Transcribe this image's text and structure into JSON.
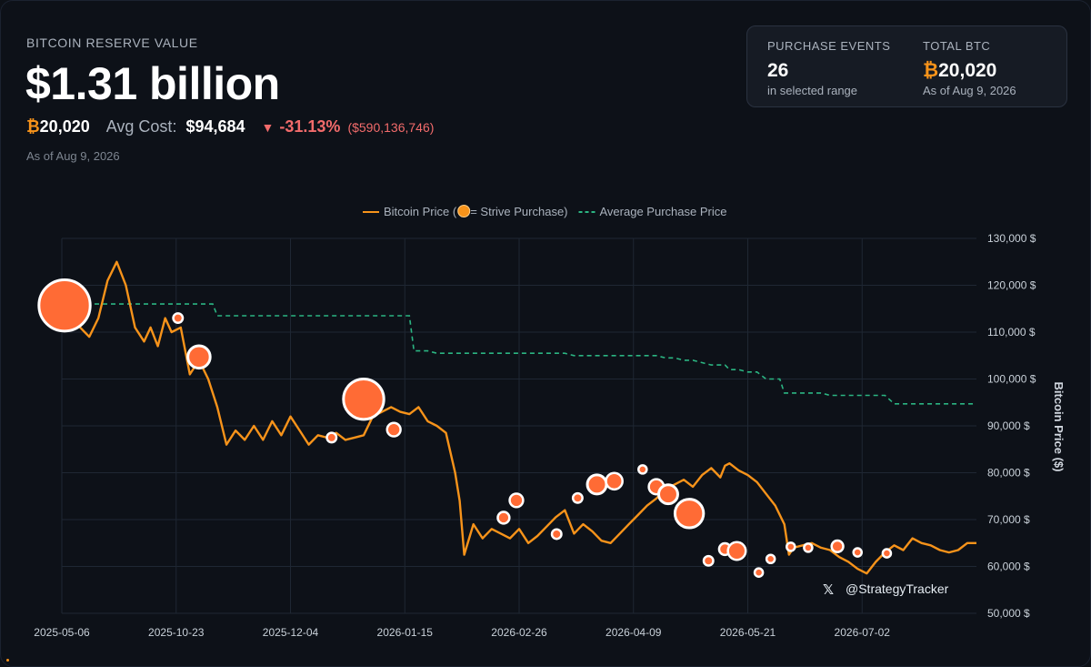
{
  "header": {
    "label": "BITCOIN RESERVE VALUE",
    "value": "$1.31 billion",
    "btc_symbol": "₿",
    "btc_amount": "20,020",
    "avg_cost_label": "Avg Cost:",
    "avg_cost_value": "$94,684",
    "change_arrow": "▼",
    "change_pct": "-31.13%",
    "change_abs": "($590,136,746)",
    "as_of": "As of Aug 9, 2026"
  },
  "summary_card": {
    "events_label": "PURCHASE EVENTS",
    "events_value": "26",
    "events_sub": "in selected range",
    "total_label": "TOTAL BTC",
    "total_symbol": "₿",
    "total_value": "20,020",
    "total_sub": "As of Aug 9, 2026"
  },
  "watermark": {
    "icon": "x-logo-icon",
    "handle": "@StrategyTracker"
  },
  "colors": {
    "price_line": "#f7931a",
    "avg_line": "#2bb582",
    "purchase_marker": "#ff6b35",
    "negative": "#f26b6b",
    "background": "#0d1118"
  },
  "chart_data": {
    "type": "line",
    "legend": {
      "position": "top-center",
      "price_label_before": "Bitcoin Price (",
      "price_label_after": " = Strive Purchase)",
      "avg_label": "Average Purchase Price"
    },
    "ylabel": "Bitcoin Price ($)",
    "ylim": [
      50000,
      130000
    ],
    "yticks": [
      130000,
      120000,
      110000,
      100000,
      90000,
      80000,
      70000,
      60000,
      50000
    ],
    "ytick_labels": [
      "130,000 $",
      "120,000 $",
      "110,000 $",
      "100,000 $",
      "90,000 $",
      "80,000 $",
      "70,000 $",
      "60,000 $",
      "50,000 $"
    ],
    "xlim": [
      0,
      100
    ],
    "xticks": [
      0,
      12.5,
      25,
      37.5,
      50,
      62.5,
      75,
      87.5
    ],
    "xtick_labels": [
      "2025-05-06",
      "2025-10-23",
      "2025-12-04",
      "2026-01-15",
      "2026-02-26",
      "2026-04-09",
      "2026-05-21",
      "2026-07-02"
    ],
    "grid": true,
    "series": [
      {
        "name": "Bitcoin Price",
        "x": [
          0,
          1.5,
          3,
          4,
          5,
          6,
          7,
          8,
          9,
          9.7,
          10.5,
          11.3,
          12,
          13,
          14,
          15,
          16,
          17,
          18,
          19,
          20,
          21,
          22,
          23,
          24,
          25,
          26,
          27,
          28,
          29,
          30,
          31,
          32,
          33,
          34,
          35,
          36,
          37,
          38,
          39,
          40,
          41,
          42,
          43,
          43.5,
          44,
          45,
          46,
          47,
          48,
          49,
          50,
          51,
          52,
          53,
          54,
          55,
          56,
          57,
          58,
          59,
          60,
          61,
          62,
          63,
          64,
          65,
          66,
          67,
          68,
          69,
          70,
          71,
          72,
          72.5,
          73,
          74,
          75,
          76,
          77,
          78,
          79,
          79.5,
          80,
          81,
          82,
          83,
          84,
          85,
          86,
          87,
          88,
          89,
          90,
          91,
          92,
          93,
          94,
          95,
          96,
          97,
          98,
          99,
          100
        ],
        "y": [
          116000,
          112000,
          109000,
          113000,
          121000,
          125000,
          120000,
          111000,
          108000,
          111000,
          107000,
          113000,
          110000,
          111000,
          101000,
          104000,
          100000,
          94000,
          86000,
          89000,
          87000,
          90000,
          87000,
          91000,
          88000,
          92000,
          89000,
          86000,
          88000,
          87500,
          88500,
          87000,
          87500,
          88000,
          92000,
          93000,
          94000,
          93000,
          92500,
          94000,
          91000,
          90000,
          88500,
          80000,
          74000,
          62500,
          69000,
          66000,
          68000,
          67000,
          66000,
          68000,
          65000,
          66500,
          68500,
          70500,
          72000,
          67000,
          69000,
          67500,
          65500,
          65000,
          67000,
          69000,
          71000,
          73000,
          74500,
          76500,
          77500,
          78500,
          77000,
          79500,
          81000,
          79000,
          81500,
          82000,
          80500,
          79500,
          78000,
          75500,
          73000,
          69000,
          62500,
          64000,
          64500,
          65000,
          64000,
          63500,
          62000,
          61000,
          59500,
          58500,
          61000,
          63000,
          64500,
          63500,
          66000,
          65000,
          64500,
          63500,
          63000,
          63500,
          65000,
          65000
        ]
      },
      {
        "name": "Average Purchase Price",
        "x": [
          0,
          16.5,
          17,
          38,
          38.5,
          40,
          41,
          55,
          56,
          65,
          66,
          67,
          68,
          69,
          70,
          71,
          72.5,
          73,
          74,
          75,
          76,
          77,
          78.5,
          79,
          83,
          84,
          90,
          91,
          100
        ],
        "y": [
          116000,
          116000,
          113500,
          113500,
          106000,
          106000,
          105500,
          105500,
          105000,
          105000,
          104500,
          104500,
          104000,
          104000,
          103500,
          103000,
          103000,
          102000,
          102000,
          101500,
          101500,
          100000,
          100000,
          97000,
          97000,
          96500,
          96500,
          94700,
          94700
        ]
      }
    ],
    "purchases": [
      {
        "x": 0.3,
        "y": 115700,
        "btc": 5800
      },
      {
        "x": 12.7,
        "y": 113000,
        "btc": 200
      },
      {
        "x": 15,
        "y": 104700,
        "btc": 1100
      },
      {
        "x": 29.5,
        "y": 87500,
        "btc": 200
      },
      {
        "x": 33,
        "y": 95700,
        "btc": 3600
      },
      {
        "x": 36.3,
        "y": 89200,
        "btc": 400
      },
      {
        "x": 48.3,
        "y": 70400,
        "btc": 300
      },
      {
        "x": 49.7,
        "y": 74100,
        "btc": 400
      },
      {
        "x": 54.1,
        "y": 66900,
        "btc": 200
      },
      {
        "x": 56.4,
        "y": 74600,
        "btc": 200
      },
      {
        "x": 58.5,
        "y": 77500,
        "btc": 800
      },
      {
        "x": 60.4,
        "y": 78200,
        "btc": 600
      },
      {
        "x": 63.5,
        "y": 80700,
        "btc": 150
      },
      {
        "x": 65,
        "y": 77000,
        "btc": 500
      },
      {
        "x": 66.3,
        "y": 75400,
        "btc": 800
      },
      {
        "x": 68.6,
        "y": 71300,
        "btc": 1800
      },
      {
        "x": 70.7,
        "y": 61200,
        "btc": 200
      },
      {
        "x": 72.5,
        "y": 63700,
        "btc": 300
      },
      {
        "x": 73.8,
        "y": 63300,
        "btc": 700
      },
      {
        "x": 76.2,
        "y": 58700,
        "btc": 150
      },
      {
        "x": 77.5,
        "y": 61600,
        "btc": 150
      },
      {
        "x": 79.7,
        "y": 64200,
        "btc": 150
      },
      {
        "x": 81.6,
        "y": 64000,
        "btc": 150
      },
      {
        "x": 84.8,
        "y": 64300,
        "btc": 300
      },
      {
        "x": 87,
        "y": 63000,
        "btc": 150
      },
      {
        "x": 90.2,
        "y": 62800,
        "btc": 150
      }
    ]
  }
}
